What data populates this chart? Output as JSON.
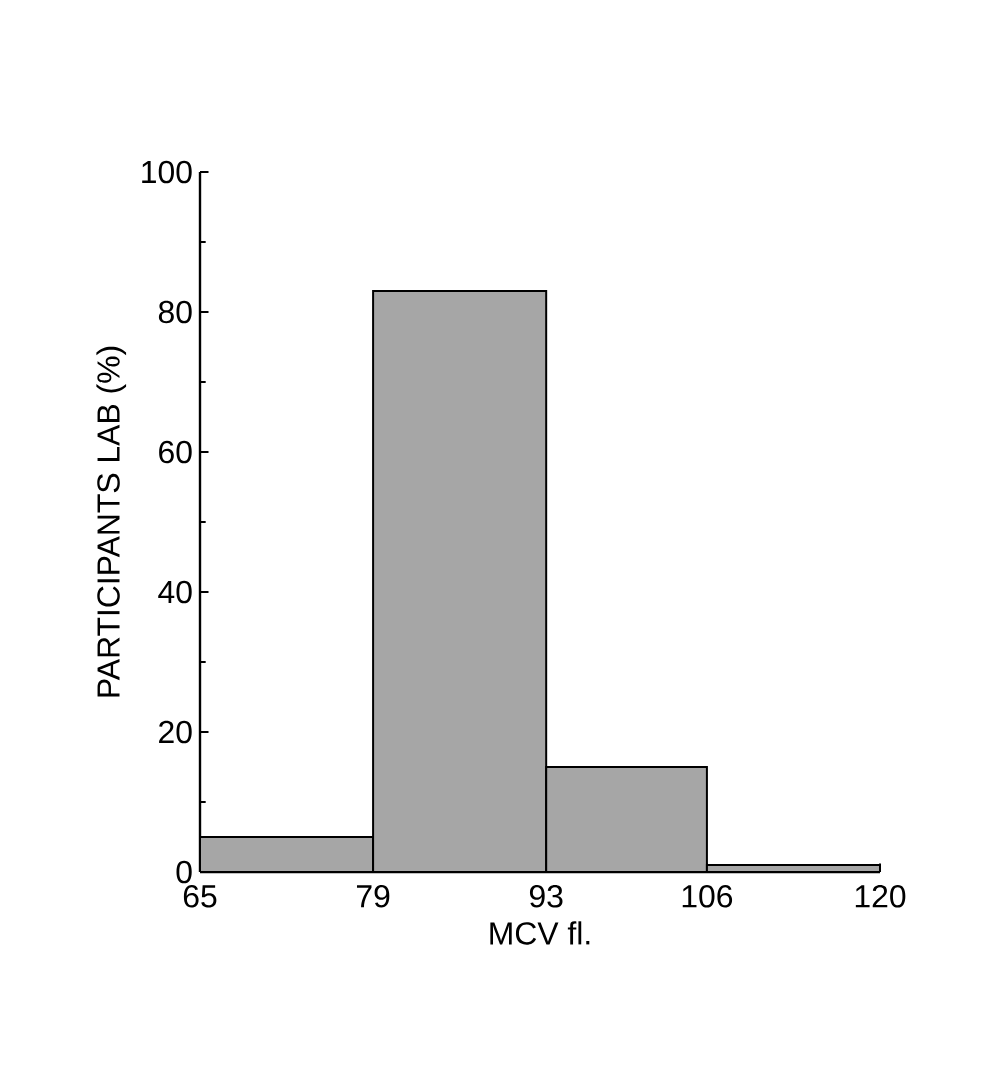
{
  "chart_data": {
    "type": "histogram",
    "xlabel": "MCV fl.",
    "ylabel": "PARTICIPANTS LAB (%)",
    "bins": [
      65,
      79,
      93,
      106,
      120
    ],
    "values": [
      5,
      83,
      15,
      1
    ],
    "color": "#a6a6a6",
    "xlim": [
      65,
      120
    ],
    "xticks": [
      65,
      79,
      93,
      106,
      120
    ],
    "ylim": [
      0,
      100
    ],
    "yticks": [
      0,
      20,
      40,
      60,
      80,
      100
    ]
  }
}
